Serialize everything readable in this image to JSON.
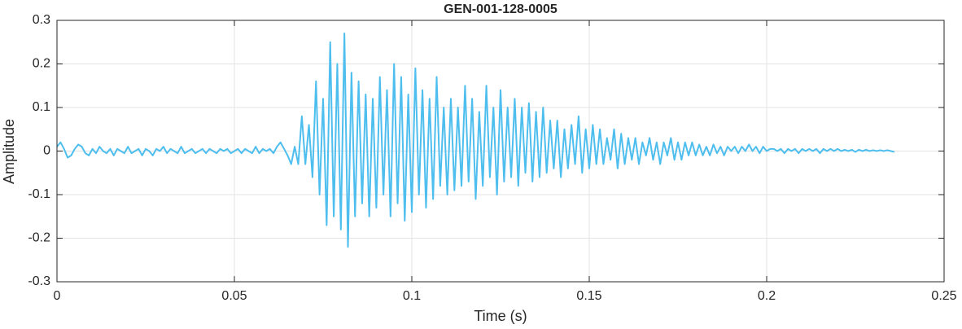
{
  "chart_data": {
    "type": "line",
    "title": "GEN-001-128-0005",
    "xlabel": "Time (s)",
    "ylabel": "Amplitude",
    "color": "#4dbeee",
    "grid": true,
    "xlim": [
      0,
      0.25
    ],
    "ylim": [
      -0.3,
      0.3
    ],
    "xticks": [
      0,
      0.05,
      0.1,
      0.15,
      0.2,
      0.25
    ],
    "yticks": [
      -0.3,
      -0.2,
      -0.1,
      0,
      0.1,
      0.2,
      0.3
    ],
    "x": [
      0,
      0.001,
      0.002,
      0.003,
      0.004,
      0.005,
      0.006,
      0.007,
      0.008,
      0.009,
      0.01,
      0.011,
      0.012,
      0.013,
      0.014,
      0.015,
      0.016,
      0.017,
      0.018,
      0.019,
      0.02,
      0.021,
      0.022,
      0.023,
      0.024,
      0.025,
      0.026,
      0.027,
      0.028,
      0.029,
      0.03,
      0.031,
      0.032,
      0.033,
      0.034,
      0.035,
      0.036,
      0.037,
      0.038,
      0.039,
      0.04,
      0.041,
      0.042,
      0.043,
      0.044,
      0.045,
      0.046,
      0.047,
      0.048,
      0.049,
      0.05,
      0.051,
      0.052,
      0.053,
      0.054,
      0.055,
      0.056,
      0.057,
      0.058,
      0.059,
      0.06,
      0.061,
      0.062,
      0.063,
      0.064,
      0.065,
      0.066,
      0.067,
      0.068,
      0.069,
      0.07,
      0.071,
      0.072,
      0.073,
      0.074,
      0.075,
      0.076,
      0.077,
      0.078,
      0.079,
      0.08,
      0.081,
      0.082,
      0.083,
      0.084,
      0.085,
      0.086,
      0.087,
      0.088,
      0.089,
      0.09,
      0.091,
      0.092,
      0.093,
      0.094,
      0.095,
      0.096,
      0.097,
      0.098,
      0.099,
      0.1,
      0.101,
      0.102,
      0.103,
      0.104,
      0.105,
      0.106,
      0.107,
      0.108,
      0.109,
      0.11,
      0.111,
      0.112,
      0.113,
      0.114,
      0.115,
      0.116,
      0.117,
      0.118,
      0.119,
      0.12,
      0.121,
      0.122,
      0.123,
      0.124,
      0.125,
      0.126,
      0.127,
      0.128,
      0.129,
      0.13,
      0.131,
      0.132,
      0.133,
      0.134,
      0.135,
      0.136,
      0.137,
      0.138,
      0.139,
      0.14,
      0.141,
      0.142,
      0.143,
      0.144,
      0.145,
      0.146,
      0.147,
      0.148,
      0.149,
      0.15,
      0.151,
      0.152,
      0.153,
      0.154,
      0.155,
      0.156,
      0.157,
      0.158,
      0.159,
      0.16,
      0.161,
      0.162,
      0.163,
      0.164,
      0.165,
      0.166,
      0.167,
      0.168,
      0.169,
      0.17,
      0.171,
      0.172,
      0.173,
      0.174,
      0.175,
      0.176,
      0.177,
      0.178,
      0.179,
      0.18,
      0.181,
      0.182,
      0.183,
      0.184,
      0.185,
      0.186,
      0.187,
      0.188,
      0.189,
      0.19,
      0.191,
      0.192,
      0.193,
      0.194,
      0.195,
      0.196,
      0.197,
      0.198,
      0.199,
      0.2,
      0.201,
      0.202,
      0.203,
      0.204,
      0.205,
      0.206,
      0.207,
      0.208,
      0.209,
      0.21,
      0.211,
      0.212,
      0.213,
      0.214,
      0.215,
      0.216,
      0.217,
      0.218,
      0.219,
      0.22,
      0.221,
      0.222,
      0.223,
      0.224,
      0.225,
      0.226,
      0.227,
      0.228,
      0.229,
      0.23,
      0.231,
      0.232,
      0.233,
      0.234,
      0.235,
      0.236
    ],
    "values": [
      0.01,
      0.02,
      0.005,
      -0.015,
      -0.01,
      0.005,
      0.015,
      0.01,
      -0.005,
      -0.01,
      0.005,
      -0.005,
      0.01,
      0.0,
      -0.005,
      0.005,
      -0.01,
      0.005,
      0.0,
      -0.005,
      0.01,
      -0.005,
      0.0,
      0.005,
      -0.01,
      0.005,
      0.0,
      -0.01,
      0.005,
      0.0,
      0.01,
      -0.005,
      0.005,
      0.0,
      -0.005,
      0.01,
      -0.005,
      0.0,
      0.005,
      -0.005,
      0.0,
      0.005,
      -0.005,
      0.005,
      0.0,
      -0.005,
      0.005,
      0.0,
      0.005,
      -0.005,
      0.0,
      0.005,
      -0.005,
      0.005,
      0.0,
      -0.005,
      0.01,
      -0.005,
      0.005,
      0.0,
      0.005,
      -0.005,
      0.01,
      0.02,
      0.005,
      -0.01,
      -0.03,
      0.01,
      -0.03,
      0.08,
      -0.03,
      0.06,
      -0.06,
      0.16,
      -0.1,
      0.12,
      -0.17,
      0.25,
      -0.15,
      0.2,
      -0.18,
      0.27,
      -0.22,
      0.18,
      -0.15,
      0.16,
      -0.12,
      0.13,
      -0.15,
      0.12,
      -0.13,
      0.17,
      -0.1,
      0.14,
      -0.15,
      0.2,
      -0.12,
      0.17,
      -0.16,
      0.13,
      -0.14,
      0.19,
      -0.1,
      0.14,
      -0.13,
      0.12,
      -0.11,
      0.17,
      -0.08,
      0.1,
      -0.1,
      0.12,
      -0.09,
      0.1,
      -0.08,
      0.15,
      -0.07,
      0.12,
      -0.11,
      0.09,
      -0.08,
      0.15,
      -0.06,
      0.1,
      -0.1,
      0.14,
      -0.07,
      0.1,
      -0.06,
      0.12,
      -0.08,
      0.1,
      -0.05,
      0.11,
      -0.07,
      0.09,
      -0.06,
      0.1,
      -0.05,
      0.07,
      -0.04,
      0.07,
      -0.06,
      0.05,
      -0.04,
      0.06,
      -0.03,
      0.08,
      -0.05,
      0.05,
      -0.04,
      0.06,
      -0.03,
      0.05,
      -0.03,
      0.03,
      -0.02,
      0.05,
      -0.04,
      0.04,
      -0.03,
      0.03,
      -0.02,
      0.03,
      -0.03,
      0.02,
      -0.01,
      0.03,
      -0.02,
      0.02,
      -0.03,
      0.02,
      -0.01,
      0.03,
      -0.02,
      0.02,
      -0.02,
      0.02,
      -0.01,
      0.02,
      -0.01,
      0.015,
      -0.01,
      0.01,
      -0.01,
      0.015,
      -0.005,
      0.01,
      -0.01,
      0.01,
      0.0,
      0.01,
      -0.005,
      0.01,
      0.0,
      0.015,
      0.0,
      0.01,
      -0.005,
      0.01,
      0.0,
      0.005,
      0.005,
      0.0,
      0.005,
      -0.005,
      0.005,
      0.0,
      0.005,
      -0.005,
      0.005,
      0.0,
      0.005,
      0.0,
      0.005,
      -0.005,
      0.005,
      0.0,
      0.005,
      0.0,
      0.005,
      0.0,
      0.003,
      0.0,
      0.003,
      -0.002,
      0.003,
      0.0,
      0.003,
      0.0,
      0.002,
      0.0,
      0.002,
      0.0,
      0.002,
      0.0,
      -0.002
    ]
  }
}
